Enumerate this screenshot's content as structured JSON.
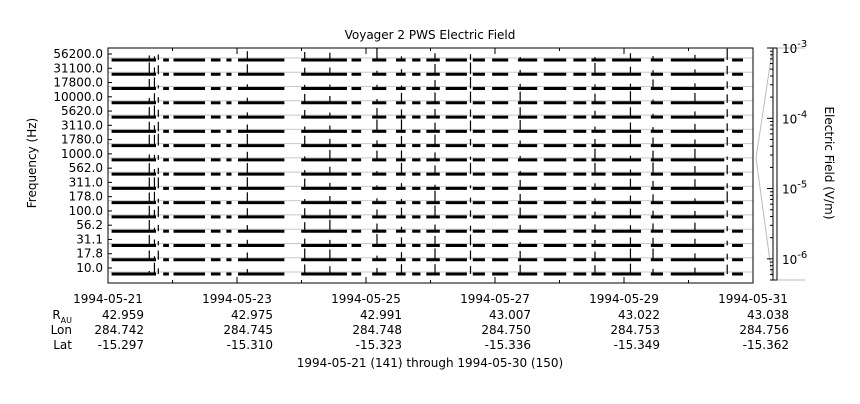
{
  "chart_data": {
    "type": "line",
    "title": "Voyager 2 PWS Electric Field",
    "ylabel": "Frequency (Hz)",
    "y2label": "Electric Field (V/m)",
    "channels": [
      "10.0",
      "17.8",
      "31.1",
      "56.2",
      "100.0",
      "178.0",
      "311.0",
      "562.0",
      "1000.0",
      "1780.0",
      "3110.0",
      "5620.0",
      "10000.0",
      "17800.0",
      "31100.0",
      "56200.0"
    ],
    "x_ticks": [
      "1994-05-21",
      "1994-05-23",
      "1994-05-25",
      "1994-05-27",
      "1994-05-29",
      "1994-05-31"
    ],
    "xlim": [
      "1994-05-21",
      "1994-05-31"
    ],
    "colorbar": {
      "scale": "log",
      "range": [
        5e-07,
        0.001
      ],
      "ticks": [
        {
          "value": 0.001,
          "base": "10",
          "exp": "-3"
        },
        {
          "value": 0.0001,
          "base": "10",
          "exp": "-4"
        },
        {
          "value": 1e-05,
          "base": "10",
          "exp": "-5"
        },
        {
          "value": 1e-06,
          "base": "10",
          "exp": "-6"
        }
      ]
    },
    "data_gaps_days": [
      [
        0.0,
        0.04
      ],
      [
        0.76,
        0.84
      ],
      [
        0.96,
        1.0
      ],
      [
        1.52,
        1.58
      ],
      [
        1.76,
        1.82
      ],
      [
        1.93,
        2.0
      ],
      [
        2.75,
        2.98
      ],
      [
        3.72,
        3.76
      ],
      [
        3.94,
        4.08
      ],
      [
        4.33,
        4.45
      ],
      [
        4.63,
        4.7
      ],
      [
        4.86,
        4.92
      ],
      [
        5.16,
        5.22
      ],
      [
        5.58,
        5.64
      ],
      [
        5.86,
        5.94
      ],
      [
        6.22,
        6.34
      ],
      [
        6.67,
        6.74
      ],
      [
        7.12,
        7.2
      ],
      [
        7.43,
        7.48
      ],
      [
        7.73,
        7.8
      ],
      [
        8.28,
        8.4
      ],
      [
        8.62,
        8.71
      ],
      [
        9.57,
        9.66
      ],
      [
        9.86,
        10.0
      ]
    ],
    "burst_days": [
      0.64,
      0.72,
      0.78,
      2.16,
      3.05,
      3.44,
      4.17,
      4.55,
      5.07,
      5.62,
      6.39,
      7.55,
      8.1,
      8.45,
      9.1,
      9.6
    ]
  },
  "ephemeris": {
    "rows": [
      {
        "label": "R",
        "sub": "AU",
        "values": [
          "42.959",
          "42.975",
          "42.991",
          "43.007",
          "43.022",
          "43.038"
        ]
      },
      {
        "label": "Lon",
        "sub": "",
        "values": [
          "284.742",
          "284.745",
          "284.748",
          "284.750",
          "284.753",
          "284.756"
        ]
      },
      {
        "label": "Lat",
        "sub": "",
        "values": [
          "-15.297",
          "-15.310",
          "-15.323",
          "-15.336",
          "-15.349",
          "-15.362"
        ]
      }
    ]
  },
  "footer": "1994-05-21 (141) through 1994-05-30 (150)"
}
